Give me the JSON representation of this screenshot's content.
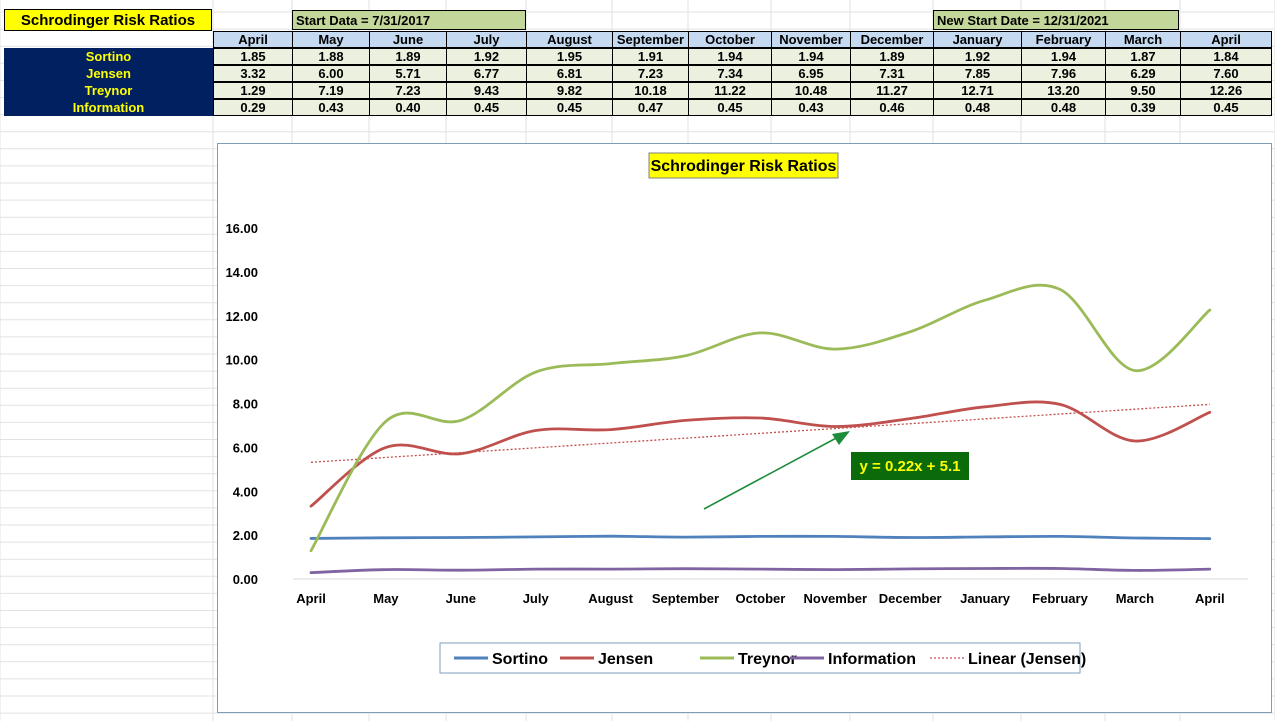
{
  "sheet": {
    "title": "Schrodinger Risk Ratios",
    "start_note": "Start Data = 7/31/2017",
    "new_start_note": "New Start Date = 12/31/2021",
    "months": [
      "April",
      "May",
      "June",
      "July",
      "August",
      "September",
      "October",
      "November",
      "December",
      "January",
      "February",
      "March",
      "April"
    ],
    "rows": [
      {
        "label": "Sortino",
        "values": [
          "1.85",
          "1.88",
          "1.89",
          "1.92",
          "1.95",
          "1.91",
          "1.94",
          "1.94",
          "1.89",
          "1.92",
          "1.94",
          "1.87",
          "1.84"
        ]
      },
      {
        "label": "Jensen",
        "values": [
          "3.32",
          "6.00",
          "5.71",
          "6.77",
          "6.81",
          "7.23",
          "7.34",
          "6.95",
          "7.31",
          "7.85",
          "7.96",
          "6.29",
          "7.60"
        ]
      },
      {
        "label": "Treynor",
        "values": [
          "1.29",
          "7.19",
          "7.23",
          "9.43",
          "9.82",
          "10.18",
          "11.22",
          "10.48",
          "11.27",
          "12.71",
          "13.20",
          "9.50",
          "12.26"
        ]
      },
      {
        "label": "Information",
        "values": [
          "0.29",
          "0.43",
          "0.40",
          "0.45",
          "0.45",
          "0.47",
          "0.45",
          "0.43",
          "0.46",
          "0.48",
          "0.48",
          "0.39",
          "0.45"
        ]
      }
    ]
  },
  "chart_data": {
    "type": "line",
    "title": "Schrodinger Risk Ratios",
    "categories": [
      "April",
      "May",
      "June",
      "July",
      "August",
      "September",
      "October",
      "November",
      "December",
      "January",
      "February",
      "March",
      "April"
    ],
    "series": [
      {
        "name": "Sortino",
        "color": "#4f81bd",
        "values": [
          1.85,
          1.88,
          1.89,
          1.92,
          1.95,
          1.91,
          1.94,
          1.94,
          1.89,
          1.92,
          1.94,
          1.87,
          1.84
        ]
      },
      {
        "name": "Jensen",
        "color": "#c0504d",
        "values": [
          3.32,
          6.0,
          5.71,
          6.77,
          6.81,
          7.23,
          7.34,
          6.95,
          7.31,
          7.85,
          7.96,
          6.29,
          7.6
        ]
      },
      {
        "name": "Treynor",
        "color": "#9bbb59",
        "values": [
          1.29,
          7.19,
          7.23,
          9.43,
          9.82,
          10.18,
          11.22,
          10.48,
          11.27,
          12.71,
          13.2,
          9.5,
          12.26
        ]
      },
      {
        "name": "Information",
        "color": "#8064a2",
        "values": [
          0.29,
          0.43,
          0.4,
          0.45,
          0.45,
          0.47,
          0.45,
          0.43,
          0.46,
          0.48,
          0.48,
          0.39,
          0.45
        ]
      }
    ],
    "trendline": {
      "name": "Linear (Jensen)",
      "color": "#c0504d",
      "slope": 0.22,
      "intercept": 5.1,
      "equation": "y = 0.22x + 5.1"
    },
    "y_ticks": [
      "0.00",
      "2.00",
      "4.00",
      "6.00",
      "8.00",
      "10.00",
      "12.00",
      "14.00",
      "16.00"
    ],
    "ylim": [
      0,
      16
    ],
    "legend_position": "bottom",
    "annotation_color": "#1e8c3c",
    "equation_bg": "#0b6b0b",
    "equation_color": "#ffff00"
  }
}
